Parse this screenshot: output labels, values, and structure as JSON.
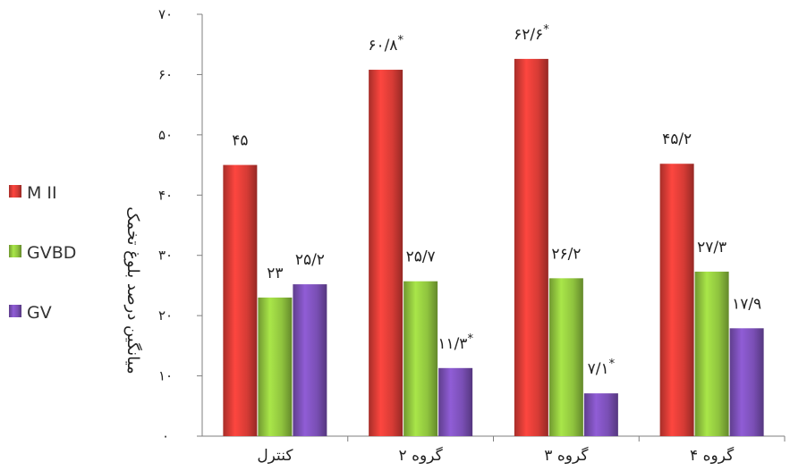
{
  "chart_data": {
    "type": "bar",
    "categories": [
      "کنترل",
      "گروه ۲",
      "گروه ۳",
      "گروه ۴"
    ],
    "series": [
      {
        "name": "M II",
        "color": "#d63b35",
        "values": [
          45,
          60.8,
          62.6,
          45.2
        ],
        "labels": [
          "۴۵",
          "۶۰/۸",
          "۶۲/۶",
          "۴۵/۲"
        ],
        "significant": [
          false,
          true,
          true,
          false
        ]
      },
      {
        "name": "GVBD",
        "color": "#8fc33e",
        "values": [
          23,
          25.7,
          26.2,
          27.3
        ],
        "labels": [
          "۲۳",
          "۲۵/۷",
          "۲۶/۲",
          "۲۷/۳"
        ],
        "significant": [
          false,
          false,
          false,
          false
        ]
      },
      {
        "name": "GV",
        "color": "#7a4fb5",
        "values": [
          25.2,
          11.3,
          7.1,
          17.9
        ],
        "labels": [
          "۲۵/۲",
          "۱۱/۳",
          "۷/۱",
          "۱۷/۹"
        ],
        "significant": [
          false,
          true,
          true,
          false
        ]
      }
    ],
    "ylabel": "میانگین درصد بلوغ تخمک",
    "ylim": [
      0,
      70
    ],
    "yticks": [
      0,
      10,
      20,
      30,
      40,
      50,
      60,
      70
    ],
    "ytick_labels": [
      "۰",
      "۱۰",
      "۲۰",
      "۳۰",
      "۴۰",
      "۵۰",
      "۶۰",
      "۷۰"
    ],
    "significance_marker": "*",
    "legend_position": "left",
    "grid": false
  }
}
